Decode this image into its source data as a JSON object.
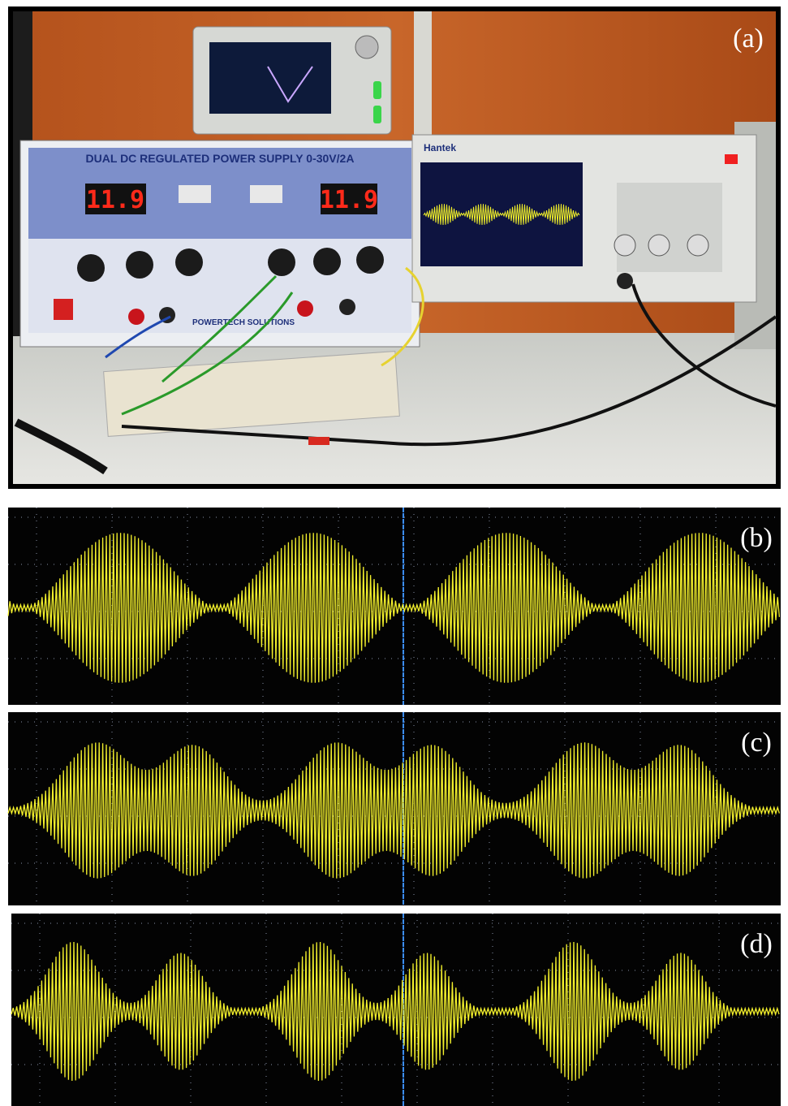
{
  "panels": [
    {
      "label": "(a)"
    },
    {
      "label": "(b)"
    },
    {
      "label": "(c)"
    },
    {
      "label": "(d)"
    }
  ],
  "photo": {
    "power_supply_title": "DUAL DC REGULATED POWER SUPPLY 0-30V/2A",
    "display_left": "11.9",
    "display_right": "11.9",
    "supply_brand": "POWERTECH SOLUTIONS",
    "scope_brand": "Hantek"
  }
}
